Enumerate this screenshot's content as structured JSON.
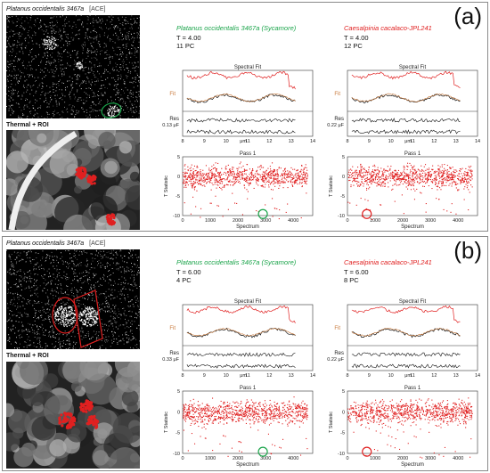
{
  "panels": [
    {
      "label": "(a)",
      "image_title": "Platanus occidentalis 3467a",
      "image_tag": "[ACE]",
      "thermal_label": "Thermal + ROI",
      "left": {
        "title": "Platanus occidentalis 3467a (Sycamore)",
        "t": "T = 4.00",
        "pc": "11 PC"
      },
      "right": {
        "title": "Caesalpinia cacalaco-JPL241",
        "t": "T = 4.00",
        "pc": "12 PC"
      },
      "res_left": "Res 0.13 μF",
      "res_right": "Res 0.22 μF"
    },
    {
      "label": "(b)",
      "image_title": "Platanus occidentalis 3467a",
      "image_tag": "[ACE]",
      "thermal_label": "Thermal + ROI",
      "left": {
        "title": "Platanus occidentalis 3467a (Sycamore)",
        "t": "T = 6.00",
        "pc": "4 PC"
      },
      "right": {
        "title": "Caesalpinia cacalaco-JPL241",
        "t": "T = 6.00",
        "pc": "8 PC"
      },
      "res_left": "Res 0.33 μF",
      "res_right": "Res 0.22 μF"
    }
  ],
  "plot_text": {
    "spectral_fit": "Spectral Fit",
    "fit": "Fit",
    "um": "μm",
    "pass": "Pass 1",
    "t_statistic": "T Statistic",
    "spectrum": "Spectrum"
  },
  "colors": {
    "green": "#1aa44a",
    "red": "#e02020",
    "fit": "#c8783a"
  },
  "chart_data": [
    {
      "type": "line",
      "title": "Spectral Fit",
      "xlabel": "μm",
      "xlim": [
        8,
        14
      ],
      "x_ticks": [
        8,
        9,
        10,
        11,
        12,
        13,
        14
      ]
    },
    {
      "type": "scatter",
      "title": "Pass 1",
      "xlabel": "Spectrum",
      "ylabel": "T Statistic",
      "xlim": [
        0,
        4700
      ],
      "ylim": [
        -10,
        5
      ],
      "x_ticks": [
        0,
        1000,
        2000,
        3000,
        4000
      ],
      "y_ticks": [
        -10,
        -5,
        0,
        5
      ]
    }
  ]
}
